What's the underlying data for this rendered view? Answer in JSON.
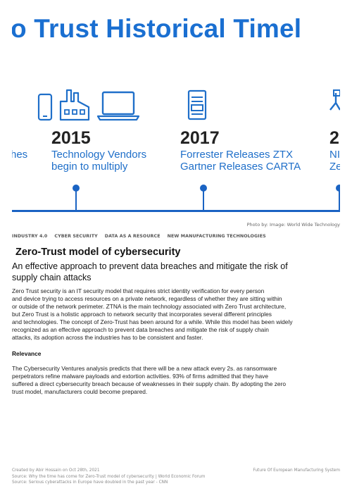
{
  "hero": {
    "title": "o Trust Historical Timel",
    "eras": [
      {
        "year": "",
        "label_lines": [
          "hes"
        ]
      },
      {
        "year": "2015",
        "label_lines": [
          "Technology Vendors",
          "begin to multiply"
        ]
      },
      {
        "year": "2017",
        "label_lines": [
          "Forrester  Releases ZTX",
          "Gartner Releases CARTA"
        ]
      },
      {
        "year": "2",
        "label_lines": [
          "NI",
          "Ze"
        ]
      }
    ],
    "accent_color": "#1a6fd1",
    "icons": [
      "smartphone-icon",
      "factory-icon",
      "laptop-icon",
      "document-icon",
      "network-icon"
    ]
  },
  "photo_credit": "Photo by: Image: World Wide Technology",
  "tags": [
    "INDUSTRY 4.0",
    "CYBER SECURITY",
    "DATA AS A RESOURCE",
    "NEW MANUFACTURING TECHNOLOGIES"
  ],
  "article": {
    "headline": "Zero-Trust model of cybersecurity",
    "subhead_lines": [
      "An effective approach to prevent data breaches and mitigate the risk of",
      "supply chain attacks"
    ],
    "body_lines": [
      "Zero Trust security is an IT security model that requires strict identity verification for every person",
      "and device trying to access resources on a private network, regardless of whether they are sitting within",
      "or outside of the network perimeter. ZTNA is the main technology associated with Zero Trust architecture,",
      "but Zero Trust is a holistic approach to network security that incorporates several different principles",
      "and technologies. The concept of Zero-Trust has been around for a while. While this model has been widely",
      "recognized as an effective approach to prevent data breaches and mitigate the risk of supply chain",
      "attacks, its adoption across the industries has to be consistent and faster."
    ],
    "section_heading": "Relevance",
    "relevance_lines": [
      "The Cybersecurity Ventures analysis predicts that there will be a new attack every 2s. as ransomware",
      "perpetrators refine malware payloads and extortion activities. 93% of firms admitted that they have",
      "suffered a direct cybersecurity breach because of weaknesses in their supply chain. By adopting the zero",
      "trust model, manufacturers could become prepared."
    ]
  },
  "footer": {
    "created": "Created by Abir Hossain on Oct 28th, 2021",
    "source1": "Source: Why the time has come for Zero-Trust model of cybersecurity | World Economic Forum",
    "source2": "Source: Serious cyberattacks in Europe have doubled in the past year - CNN",
    "right": "Future Of European Manufacturing System"
  }
}
